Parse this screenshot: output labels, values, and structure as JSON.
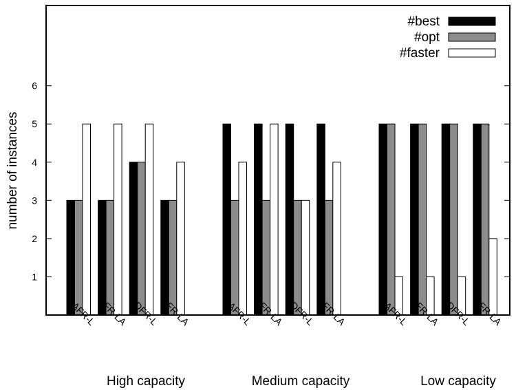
{
  "chart_data": {
    "type": "bar",
    "ylabel": "number of instances",
    "yticks": [
      1,
      2,
      3,
      4,
      5,
      6
    ],
    "ylim": [
      0,
      8.1
    ],
    "groups": [
      "High capacity",
      "Medium capacity",
      "Low capacity"
    ],
    "categories": [
      "AFR-L",
      "AFR-LA",
      "DFR-L",
      "DFR-LA"
    ],
    "series": [
      {
        "name": "#best",
        "color": "#000000",
        "values": [
          [
            3,
            3,
            4,
            3
          ],
          [
            5,
            5,
            5,
            5
          ],
          [
            5,
            5,
            5,
            5
          ]
        ]
      },
      {
        "name": "#opt",
        "color": "#8c8c8c",
        "values": [
          [
            3,
            3,
            4,
            3
          ],
          [
            3,
            3,
            3,
            3
          ],
          [
            5,
            5,
            5,
            5
          ]
        ]
      },
      {
        "name": "#faster",
        "color": "#ffffff",
        "values": [
          [
            5,
            5,
            5,
            4
          ],
          [
            4,
            5,
            3,
            4
          ],
          [
            1,
            1,
            1,
            2
          ]
        ]
      }
    ],
    "legend_position": "top-right",
    "grid": false
  }
}
